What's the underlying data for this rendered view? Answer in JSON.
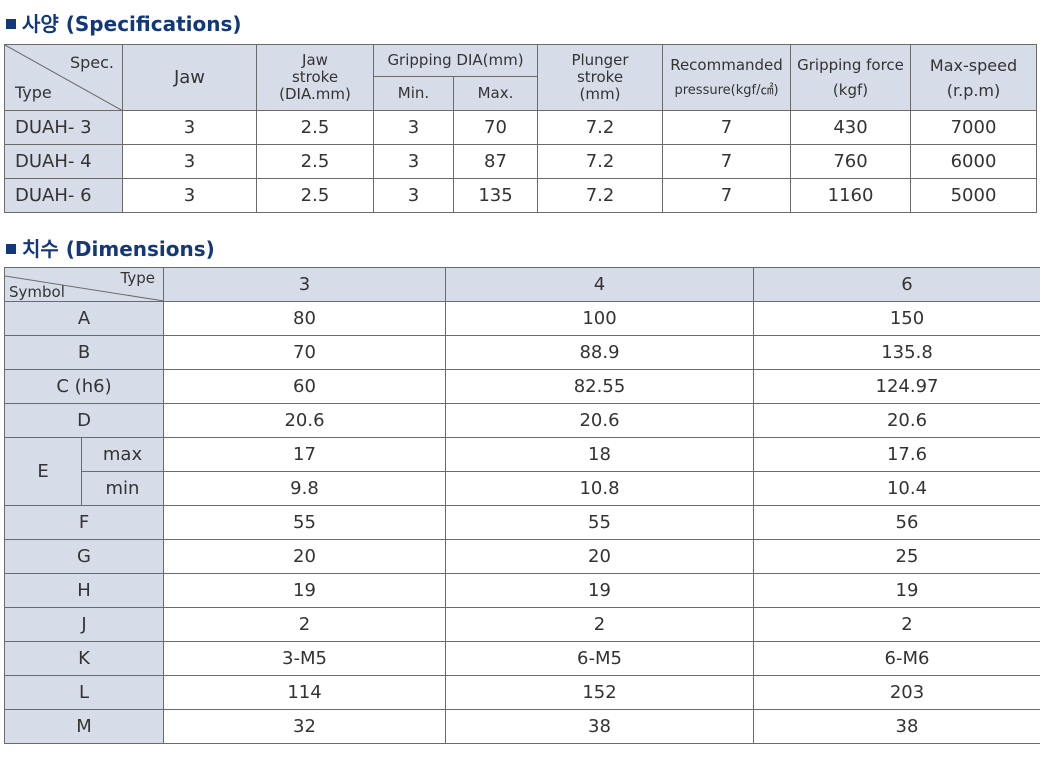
{
  "spec_section": {
    "title": "사양 (Specifications)",
    "corner_top": "Spec.",
    "corner_bottom": "Type",
    "headers": {
      "jaw": "Jaw",
      "jaw_stroke": [
        "Jaw",
        "stroke",
        "(DIA.mm)"
      ],
      "gripping_dia": "Gripping DIA(mm)",
      "min": "Min.",
      "max": "Max.",
      "plunger_stroke": [
        "Plunger",
        "stroke",
        "(mm)"
      ],
      "recommanded": [
        "Recommanded",
        "pressure(kgf/㎠)"
      ],
      "gripping_force": [
        "Gripping force",
        "(kgf)"
      ],
      "max_speed": [
        "Max-speed",
        "(r.p.m)"
      ]
    },
    "rows": [
      {
        "type": "DUAH- 3",
        "jaw": "3",
        "stroke": "2.5",
        "min": "3",
        "max": "70",
        "plunger": "7.2",
        "pressure": "7",
        "force": "430",
        "speed": "7000"
      },
      {
        "type": "DUAH- 4",
        "jaw": "3",
        "stroke": "2.5",
        "min": "3",
        "max": "87",
        "plunger": "7.2",
        "pressure": "7",
        "force": "760",
        "speed": "6000"
      },
      {
        "type": "DUAH- 6",
        "jaw": "3",
        "stroke": "2.5",
        "min": "3",
        "max": "135",
        "plunger": "7.2",
        "pressure": "7",
        "force": "1160",
        "speed": "5000"
      }
    ]
  },
  "dim_section": {
    "title": "치수 (Dimensions)",
    "corner_top": "Type",
    "corner_bottom": "Symbol",
    "types": [
      "3",
      "4",
      "6"
    ],
    "rows": [
      {
        "symbol": "A",
        "values": [
          "80",
          "100",
          "150"
        ]
      },
      {
        "symbol": "B",
        "values": [
          "70",
          "88.9",
          "135.8"
        ]
      },
      {
        "symbol": "C (h6)",
        "values": [
          "60",
          "82.55",
          "124.97"
        ]
      },
      {
        "symbol": "D",
        "values": [
          "20.6",
          "20.6",
          "20.6"
        ]
      },
      {
        "symbol": "E",
        "sub": "max",
        "values": [
          "17",
          "18",
          "17.6"
        ]
      },
      {
        "symbol": "E",
        "sub": "min",
        "values": [
          "9.8",
          "10.8",
          "10.4"
        ]
      },
      {
        "symbol": "F",
        "values": [
          "55",
          "55",
          "56"
        ]
      },
      {
        "symbol": "G",
        "values": [
          "20",
          "20",
          "25"
        ]
      },
      {
        "symbol": "H",
        "values": [
          "19",
          "19",
          "19"
        ]
      },
      {
        "symbol": "J",
        "values": [
          "2",
          "2",
          "2"
        ]
      },
      {
        "symbol": "K",
        "values": [
          "3-M5",
          "6-M5",
          "6-M6"
        ]
      },
      {
        "symbol": "L",
        "values": [
          "114",
          "152",
          "203"
        ]
      },
      {
        "symbol": "M",
        "values": [
          "32",
          "38",
          "38"
        ]
      }
    ]
  },
  "colors": {
    "title": "#12387a",
    "header_fill": "#d7dde8",
    "border": "#6b6b6b"
  }
}
